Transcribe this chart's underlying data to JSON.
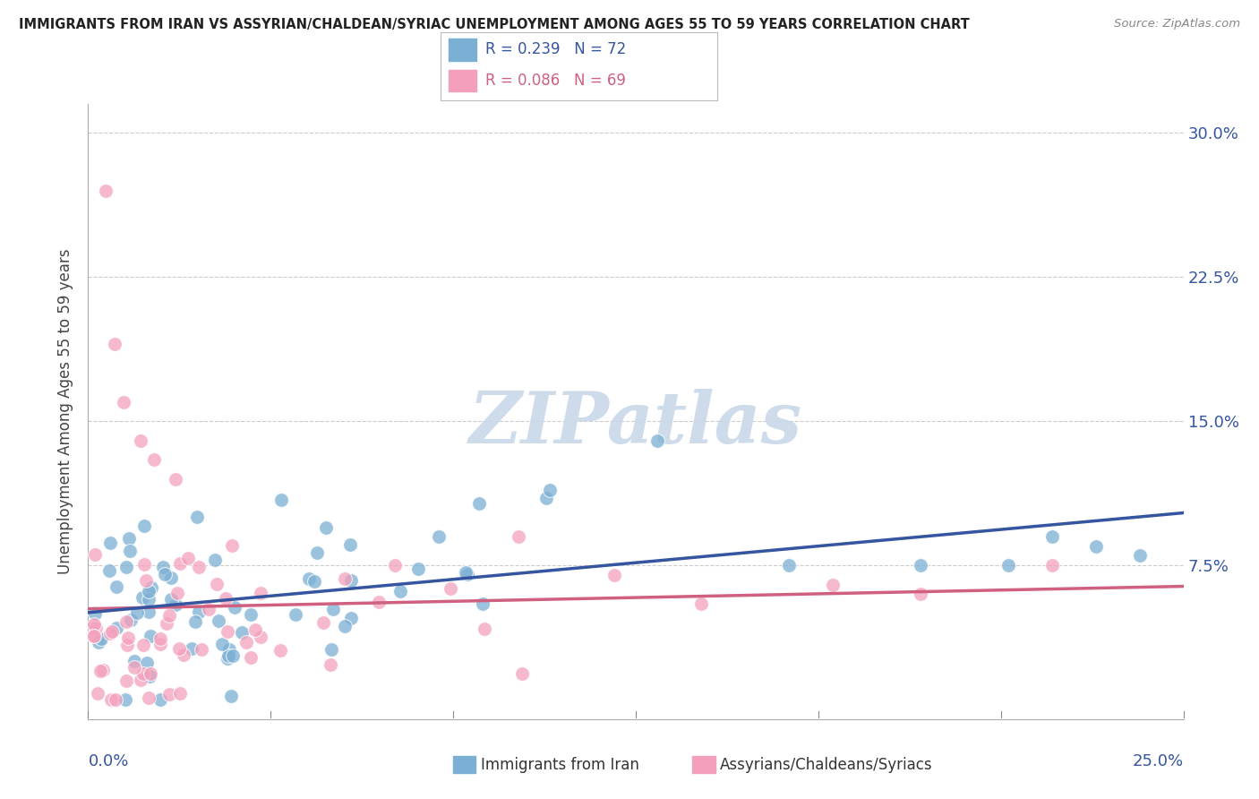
{
  "title": "IMMIGRANTS FROM IRAN VS ASSYRIAN/CHALDEAN/SYRIAC UNEMPLOYMENT AMONG AGES 55 TO 59 YEARS CORRELATION CHART",
  "source": "Source: ZipAtlas.com",
  "ylabel": "Unemployment Among Ages 55 to 59 years",
  "xlim": [
    0,
    0.25
  ],
  "ylim": [
    -0.005,
    0.315
  ],
  "series1_label": "Immigrants from Iran",
  "series1_color": "#7BAFD4",
  "series1_R": "0.239",
  "series1_N": "72",
  "series2_label": "Assyrians/Chaldeans/Syriacs",
  "series2_color": "#F4A0BC",
  "series2_R": "0.086",
  "series2_N": "69",
  "blue_line_color": "#3555A0",
  "pink_line_color": "#D06080",
  "ytick_vals": [
    0.075,
    0.15,
    0.225,
    0.3
  ],
  "ytick_labels": [
    "7.5%",
    "15.0%",
    "22.5%",
    "30.0%"
  ],
  "watermark_text": "ZIPatlas",
  "watermark_color": "#C8D8E8",
  "grid_color": "#CCCCCC"
}
